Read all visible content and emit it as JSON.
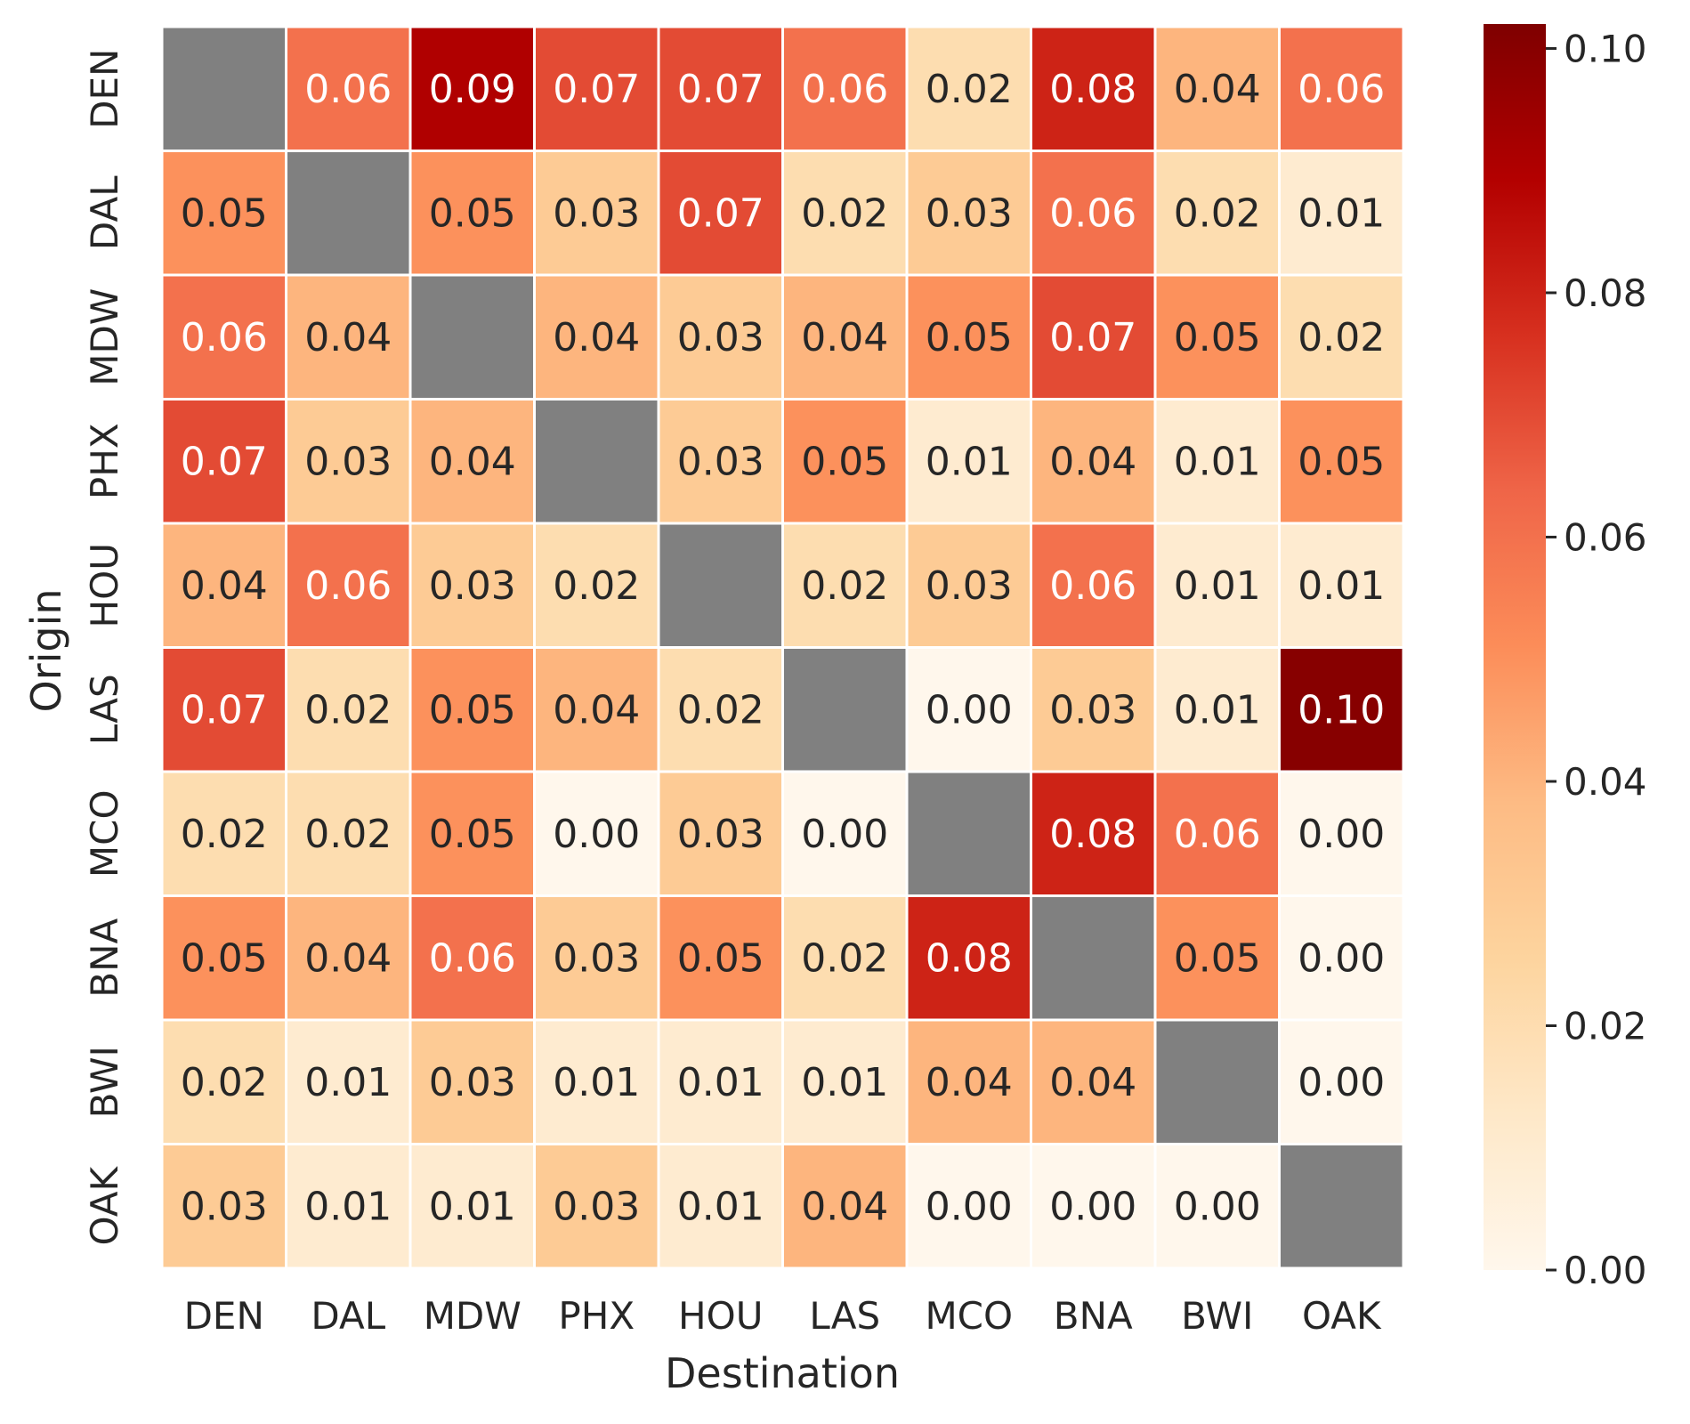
{
  "chart_data": {
    "type": "heatmap",
    "xlabel": "Destination",
    "ylabel": "Origin",
    "x_categories": [
      "DEN",
      "DAL",
      "MDW",
      "PHX",
      "HOU",
      "LAS",
      "MCO",
      "BNA",
      "BWI",
      "OAK"
    ],
    "y_categories": [
      "DEN",
      "DAL",
      "MDW",
      "PHX",
      "HOU",
      "LAS",
      "MCO",
      "BNA",
      "BWI",
      "OAK"
    ],
    "values": [
      [
        null,
        0.06,
        0.09,
        0.07,
        0.07,
        0.06,
        0.02,
        0.08,
        0.04,
        0.06
      ],
      [
        0.05,
        null,
        0.05,
        0.03,
        0.07,
        0.02,
        0.03,
        0.06,
        0.02,
        0.01
      ],
      [
        0.06,
        0.04,
        null,
        0.04,
        0.03,
        0.04,
        0.05,
        0.07,
        0.05,
        0.02
      ],
      [
        0.07,
        0.03,
        0.04,
        null,
        0.03,
        0.05,
        0.01,
        0.04,
        0.01,
        0.05
      ],
      [
        0.04,
        0.06,
        0.03,
        0.02,
        null,
        0.02,
        0.03,
        0.06,
        0.01,
        0.01
      ],
      [
        0.07,
        0.02,
        0.05,
        0.04,
        0.02,
        null,
        0.0,
        0.03,
        0.01,
        0.1
      ],
      [
        0.02,
        0.02,
        0.05,
        0.0,
        0.03,
        0.0,
        null,
        0.08,
        0.06,
        0.0
      ],
      [
        0.05,
        0.04,
        0.06,
        0.03,
        0.05,
        0.02,
        0.08,
        null,
        0.05,
        0.0
      ],
      [
        0.02,
        0.01,
        0.03,
        0.01,
        0.01,
        0.01,
        0.04,
        0.04,
        null,
        0.0
      ],
      [
        0.03,
        0.01,
        0.01,
        0.03,
        0.01,
        0.04,
        0.0,
        0.0,
        0.0,
        null
      ]
    ],
    "colorbar": {
      "range": [
        0.0,
        0.102
      ],
      "ticks": [
        "0.00",
        "0.02",
        "0.04",
        "0.06",
        "0.08",
        "0.10"
      ],
      "colormap": "OrRd",
      "colors": [
        "#fff7ec",
        "#fee8c8",
        "#fdd49e",
        "#fdbb84",
        "#fc8d59",
        "#ef6548",
        "#d7301f",
        "#b30000",
        "#7f0000"
      ]
    },
    "missing_color": "#808080",
    "grid": false,
    "legend": "colorbar-right"
  }
}
